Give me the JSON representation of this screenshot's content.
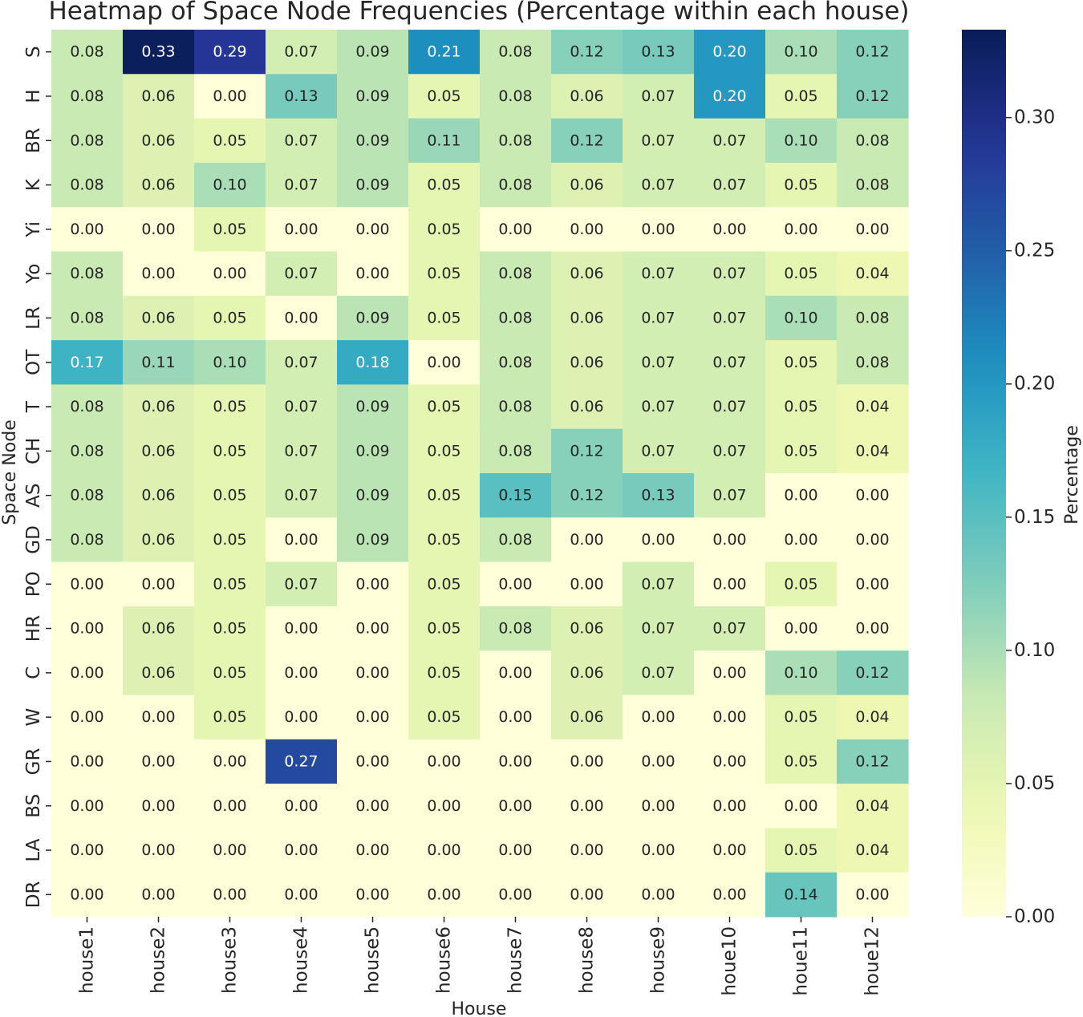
{
  "chart_data": {
    "type": "heatmap",
    "title": "Heatmap of Space Node Frequencies (Percentage within each house)",
    "xlabel": "House",
    "ylabel": "Space Node",
    "colorbar_label": "Percentage",
    "colorbar_range": [
      0.0,
      0.333
    ],
    "colorbar_ticks": [
      "0.00",
      "0.05",
      "0.10",
      "0.15",
      "0.20",
      "0.25",
      "0.30"
    ],
    "colormap": "YlGnBu",
    "columns": [
      "house1",
      "house2",
      "house3",
      "house4",
      "house5",
      "house6",
      "house7",
      "house8",
      "house9",
      "houe10",
      "houe11",
      "houe12"
    ],
    "rows": [
      "S",
      "H",
      "BR",
      "K",
      "Yi",
      "Yo",
      "LR",
      "OT",
      "T",
      "CH",
      "AS",
      "GD",
      "PO",
      "HR",
      "C",
      "W",
      "GR",
      "BS",
      "LA",
      "DR"
    ],
    "values": [
      [
        0.08,
        0.33,
        0.29,
        0.07,
        0.09,
        0.21,
        0.08,
        0.12,
        0.13,
        0.2,
        0.1,
        0.12
      ],
      [
        0.08,
        0.06,
        0.0,
        0.13,
        0.09,
        0.05,
        0.08,
        0.06,
        0.07,
        0.2,
        0.05,
        0.12
      ],
      [
        0.08,
        0.06,
        0.05,
        0.07,
        0.09,
        0.11,
        0.08,
        0.12,
        0.07,
        0.07,
        0.1,
        0.08
      ],
      [
        0.08,
        0.06,
        0.1,
        0.07,
        0.09,
        0.05,
        0.08,
        0.06,
        0.07,
        0.07,
        0.05,
        0.08
      ],
      [
        0.0,
        0.0,
        0.05,
        0.0,
        0.0,
        0.05,
        0.0,
        0.0,
        0.0,
        0.0,
        0.0,
        0.0
      ],
      [
        0.08,
        0.0,
        0.0,
        0.07,
        0.0,
        0.05,
        0.08,
        0.06,
        0.07,
        0.07,
        0.05,
        0.04
      ],
      [
        0.08,
        0.06,
        0.05,
        0.0,
        0.09,
        0.05,
        0.08,
        0.06,
        0.07,
        0.07,
        0.1,
        0.08
      ],
      [
        0.17,
        0.11,
        0.1,
        0.07,
        0.18,
        0.0,
        0.08,
        0.06,
        0.07,
        0.07,
        0.05,
        0.08
      ],
      [
        0.08,
        0.06,
        0.05,
        0.07,
        0.09,
        0.05,
        0.08,
        0.06,
        0.07,
        0.07,
        0.05,
        0.04
      ],
      [
        0.08,
        0.06,
        0.05,
        0.07,
        0.09,
        0.05,
        0.08,
        0.12,
        0.07,
        0.07,
        0.05,
        0.04
      ],
      [
        0.08,
        0.06,
        0.05,
        0.07,
        0.09,
        0.05,
        0.15,
        0.12,
        0.13,
        0.07,
        0.0,
        0.0
      ],
      [
        0.08,
        0.06,
        0.05,
        0.0,
        0.09,
        0.05,
        0.08,
        0.0,
        0.0,
        0.0,
        0.0,
        0.0
      ],
      [
        0.0,
        0.0,
        0.05,
        0.07,
        0.0,
        0.05,
        0.0,
        0.0,
        0.07,
        0.0,
        0.05,
        0.0
      ],
      [
        0.0,
        0.06,
        0.05,
        0.0,
        0.0,
        0.05,
        0.08,
        0.06,
        0.07,
        0.07,
        0.0,
        0.0
      ],
      [
        0.0,
        0.06,
        0.05,
        0.0,
        0.0,
        0.05,
        0.0,
        0.06,
        0.07,
        0.0,
        0.1,
        0.12
      ],
      [
        0.0,
        0.0,
        0.05,
        0.0,
        0.0,
        0.05,
        0.0,
        0.06,
        0.0,
        0.0,
        0.05,
        0.04
      ],
      [
        0.0,
        0.0,
        0.0,
        0.27,
        0.0,
        0.0,
        0.0,
        0.0,
        0.0,
        0.0,
        0.05,
        0.12
      ],
      [
        0.0,
        0.0,
        0.0,
        0.0,
        0.0,
        0.0,
        0.0,
        0.0,
        0.0,
        0.0,
        0.0,
        0.04
      ],
      [
        0.0,
        0.0,
        0.0,
        0.0,
        0.0,
        0.0,
        0.0,
        0.0,
        0.0,
        0.0,
        0.05,
        0.04
      ],
      [
        0.0,
        0.0,
        0.0,
        0.0,
        0.0,
        0.0,
        0.0,
        0.0,
        0.0,
        0.0,
        0.14,
        0.0
      ]
    ]
  }
}
